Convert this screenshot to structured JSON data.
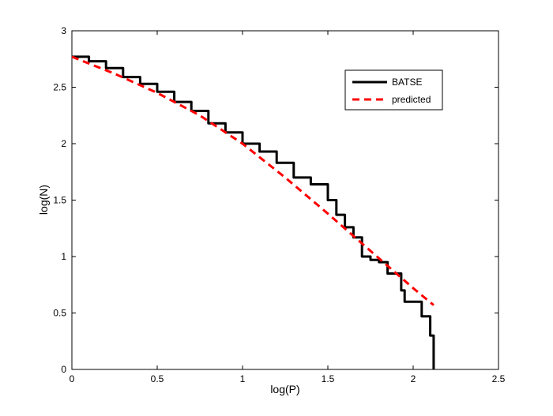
{
  "chart_data": {
    "type": "line",
    "title": "",
    "xlabel": "log(P)",
    "ylabel": "log(N)",
    "xlim": [
      0,
      2.5
    ],
    "ylim": [
      0,
      3
    ],
    "xticks": [
      0,
      0.5,
      1,
      1.5,
      2,
      2.5
    ],
    "xtick_labels": [
      "0",
      "0.5",
      "1",
      "1.5",
      "2",
      "2.5"
    ],
    "yticks": [
      0,
      0.5,
      1,
      1.5,
      2,
      2.5,
      3
    ],
    "ytick_labels": [
      "0",
      "0.5",
      "1",
      "1.5",
      "2",
      "2.5",
      "3"
    ],
    "grid": false,
    "legend_position": "top-right",
    "series": [
      {
        "name": "BATSE",
        "color": "#000000",
        "style": "solid-step",
        "x": [
          0,
          0.1,
          0.2,
          0.3,
          0.4,
          0.5,
          0.6,
          0.7,
          0.8,
          0.9,
          1.0,
          1.1,
          1.2,
          1.3,
          1.4,
          1.5,
          1.55,
          1.6,
          1.65,
          1.7,
          1.75,
          1.8,
          1.85,
          1.9,
          1.93,
          1.95,
          2.0,
          2.05,
          2.1,
          2.12,
          2.12
        ],
        "y": [
          2.77,
          2.73,
          2.67,
          2.59,
          2.53,
          2.46,
          2.37,
          2.29,
          2.18,
          2.1,
          2.0,
          1.93,
          1.83,
          1.7,
          1.64,
          1.5,
          1.37,
          1.26,
          1.17,
          1.0,
          0.97,
          0.95,
          0.85,
          0.85,
          0.7,
          0.6,
          0.6,
          0.47,
          0.3,
          0.3,
          0.0
        ]
      },
      {
        "name": "predicted",
        "color": "#ff0000",
        "style": "dashed",
        "x": [
          0,
          0.25,
          0.5,
          0.75,
          1.0,
          1.25,
          1.5,
          1.75,
          2.0,
          2.12
        ],
        "y": [
          2.77,
          2.62,
          2.45,
          2.25,
          2.0,
          1.7,
          1.38,
          1.05,
          0.72,
          0.57
        ]
      }
    ]
  }
}
